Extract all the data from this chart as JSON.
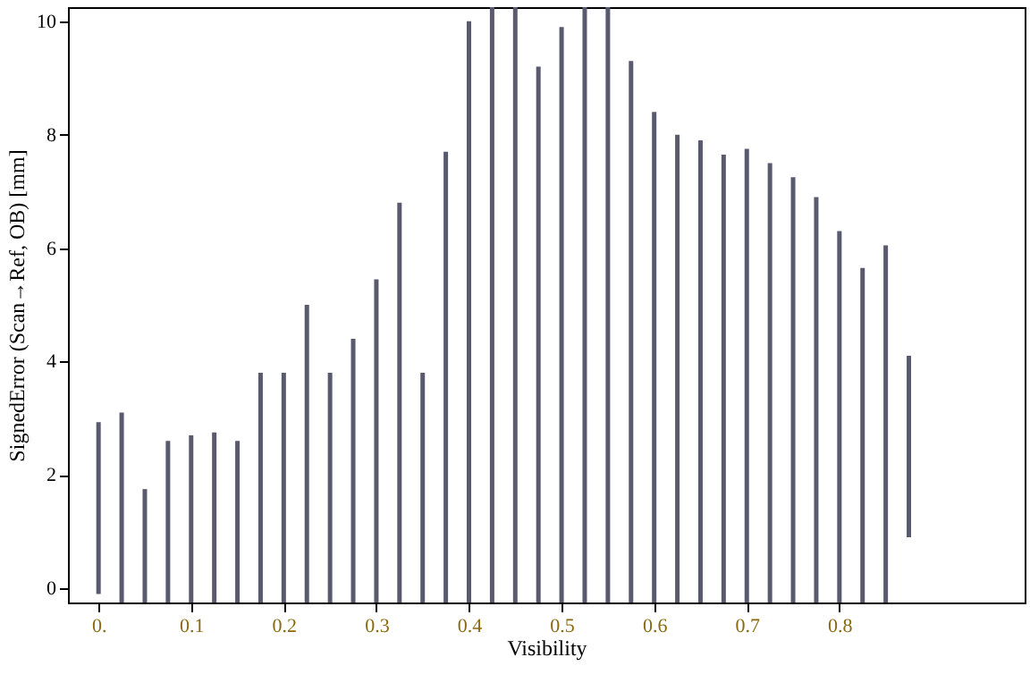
{
  "chart_data": {
    "type": "bar",
    "xlabel": "Visibility",
    "ylabel": "SignedError (Scan→Ref, OB) [mm]",
    "x": [
      0,
      0.025,
      0.05,
      0.075,
      0.1,
      0.125,
      0.15,
      0.175,
      0.2,
      0.225,
      0.25,
      0.275,
      0.3,
      0.325,
      0.35,
      0.375,
      0.4,
      0.425,
      0.45,
      0.475,
      0.5,
      0.525,
      0.55,
      0.575,
      0.6,
      0.625,
      0.65,
      0.675,
      0.7,
      0.725,
      0.75,
      0.775,
      0.8,
      0.825,
      0.85,
      0.875
    ],
    "base": [
      -0.1,
      -0.25,
      -0.25,
      -0.25,
      -0.25,
      -0.25,
      -0.25,
      -0.25,
      -0.25,
      -0.25,
      -0.25,
      -0.25,
      -0.25,
      -0.25,
      -0.25,
      -0.25,
      -0.25,
      -0.25,
      -0.25,
      -0.25,
      -0.25,
      -0.25,
      -0.25,
      -0.25,
      -0.25,
      -0.25,
      -0.25,
      -0.25,
      -0.25,
      -0.25,
      -0.25,
      -0.25,
      -0.25,
      -0.25,
      -0.25,
      0.9
    ],
    "values": [
      3.03,
      3.35,
      2.0,
      2.85,
      2.95,
      3.0,
      2.85,
      4.05,
      4.05,
      5.25,
      4.05,
      4.65,
      5.7,
      7.05,
      4.05,
      7.95,
      10.25,
      10.5,
      10.5,
      9.45,
      10.15,
      10.5,
      10.5,
      9.55,
      8.65,
      8.25,
      8.15,
      7.9,
      8.0,
      7.75,
      7.5,
      7.15,
      6.55,
      5.9,
      6.3,
      3.2
    ],
    "color": "#5a5a6e",
    "xlim": [
      -0.033,
      1.0
    ],
    "xticks": [
      {
        "value": 0,
        "label": "0."
      },
      0.1,
      0.2,
      0.3,
      0.4,
      0.5,
      0.6,
      0.7,
      0.8
    ],
    "ylim": [
      -0.25,
      10.25
    ],
    "yticks": [
      0,
      2,
      4,
      6,
      8,
      10
    ],
    "grid": false
  }
}
